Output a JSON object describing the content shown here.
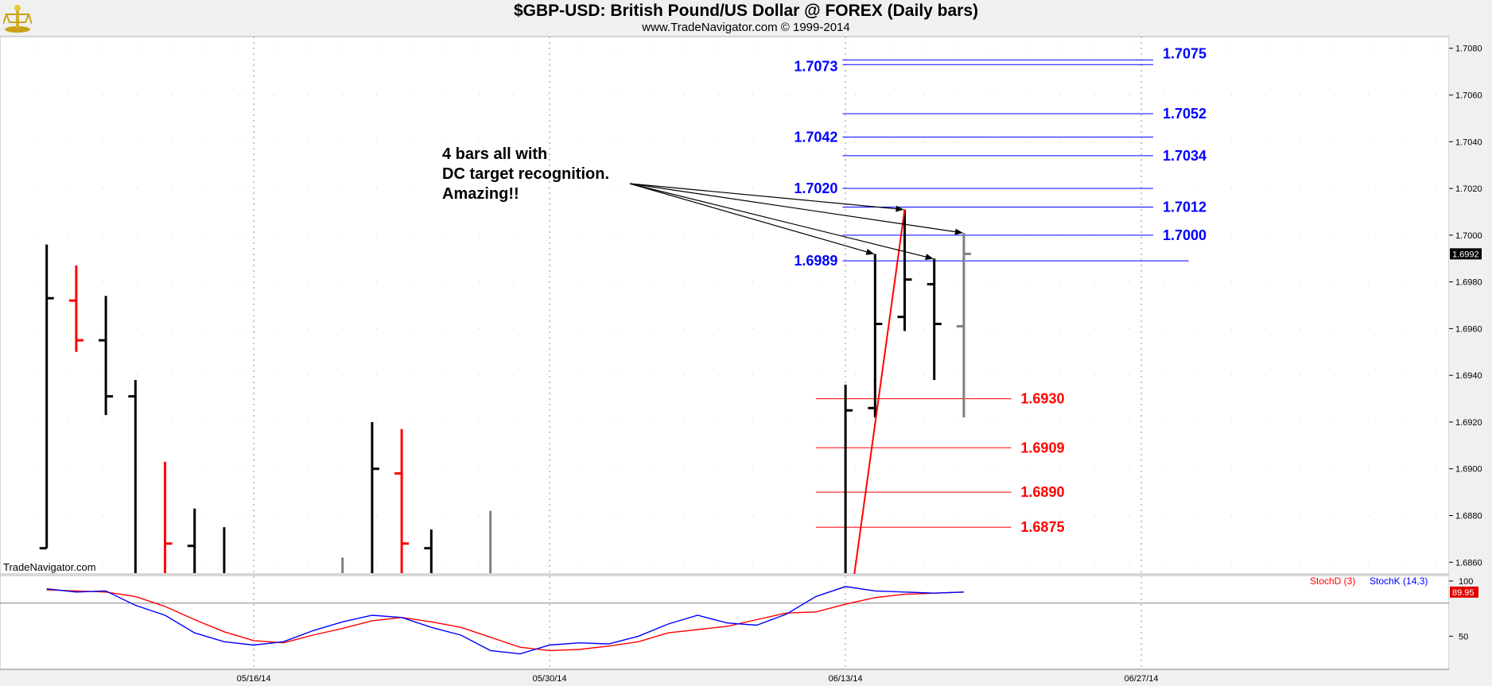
{
  "header": {
    "title": "$GBP-USD:  British Pound/US Dollar @ FOREX  (Daily bars)",
    "subtitle": "www.TradeNavigator.com © 1999-2014"
  },
  "watermark": "TradeNavigator.com",
  "chart_data": [
    {
      "type": "ohlc",
      "ylim": [
        1.6855,
        1.7085
      ],
      "y_ticks": [
        "1.7080",
        "1.7060",
        "1.7040",
        "1.7020",
        "1.7000",
        "1.6980",
        "1.6960",
        "1.6940",
        "1.6920",
        "1.6900",
        "1.6880",
        "1.6860"
      ],
      "x_ticks": [
        {
          "label": "05/16/14",
          "day": 8
        },
        {
          "label": "05/30/14",
          "day": 18
        },
        {
          "label": "06/13/14",
          "day": 28
        },
        {
          "label": "06/27/14",
          "day": 38
        }
      ],
      "last_price": {
        "label": "1.6992",
        "value": 1.6992
      },
      "bars": [
        {
          "day": 1,
          "open": 1.6866,
          "high": 1.6996,
          "low": 1.6866,
          "close": 1.6973,
          "color": "#000000"
        },
        {
          "day": 2,
          "open": 1.6972,
          "high": 1.6987,
          "low": 1.695,
          "close": 1.6955,
          "color": "#ff0000"
        },
        {
          "day": 3,
          "open": 1.6955,
          "high": 1.6974,
          "low": 1.6923,
          "close": 1.6931,
          "color": "#000000"
        },
        {
          "day": 4,
          "open": 1.6931,
          "high": 1.6938,
          "low": 1.6855,
          "close": 1.6855,
          "color": "#000000"
        },
        {
          "day": 5,
          "open": 1.6855,
          "high": 1.6903,
          "low": 1.6855,
          "close": 1.6868,
          "color": "#ff0000"
        },
        {
          "day": 6,
          "open": 1.6867,
          "high": 1.6883,
          "low": 1.6855,
          "close": 1.6855,
          "color": "#000000"
        },
        {
          "day": 7,
          "open": 1.6855,
          "high": 1.6875,
          "low": 1.6855,
          "close": 1.6855,
          "color": "#000000"
        },
        {
          "day": 11,
          "open": 1.6855,
          "high": 1.6862,
          "low": 1.6855,
          "close": 1.6855,
          "color": "#808080"
        },
        {
          "day": 12,
          "open": 1.6855,
          "high": 1.692,
          "low": 1.6855,
          "close": 1.69,
          "color": "#000000"
        },
        {
          "day": 13,
          "open": 1.6898,
          "high": 1.6917,
          "low": 1.6855,
          "close": 1.6868,
          "color": "#ff0000"
        },
        {
          "day": 14,
          "open": 1.6866,
          "high": 1.6874,
          "low": 1.6855,
          "close": 1.6855,
          "color": "#000000"
        },
        {
          "day": 16,
          "open": 1.6855,
          "high": 1.6882,
          "low": 1.6855,
          "close": 1.6855,
          "color": "#808080"
        },
        {
          "day": 28,
          "open": 1.6855,
          "high": 1.6936,
          "low": 1.6855,
          "close": 1.6925,
          "color": "#000000"
        },
        {
          "day": 29,
          "open": 1.6926,
          "high": 1.6992,
          "low": 1.6922,
          "close": 1.6962,
          "color": "#000000"
        },
        {
          "day": 30,
          "open": 1.6965,
          "high": 1.7011,
          "low": 1.6959,
          "close": 1.6981,
          "color": "#000000"
        },
        {
          "day": 31,
          "open": 1.6979,
          "high": 1.699,
          "low": 1.6938,
          "close": 1.6962,
          "color": "#000000"
        },
        {
          "day": 32,
          "open": 1.6961,
          "high": 1.7001,
          "low": 1.6922,
          "close": 1.6992,
          "color": "#808080"
        }
      ],
      "trend_line": {
        "from": {
          "day": 28.3,
          "value": 1.6855
        },
        "to": {
          "day": 30,
          "value": 1.7011
        },
        "color": "#ff0000"
      },
      "target_lines": [
        {
          "value": 1.7075,
          "label": "1.7075",
          "color": "#0000ff"
        },
        {
          "value": 1.7073,
          "label": "1.7073",
          "color": "#0000ff"
        },
        {
          "value": 1.7052,
          "label": "1.7052",
          "color": "#0000ff"
        },
        {
          "value": 1.7042,
          "label": "1.7042",
          "color": "#0000ff"
        },
        {
          "value": 1.7034,
          "label": "1.7034",
          "color": "#0000ff"
        },
        {
          "value": 1.702,
          "label": "1.7020",
          "color": "#0000ff"
        },
        {
          "value": 1.7012,
          "label": "1.7012",
          "color": "#0000ff"
        },
        {
          "value": 1.7,
          "label": "1.7000",
          "color": "#0000ff"
        },
        {
          "value": 1.6989,
          "label": "1.6989",
          "color": "#0000ff"
        },
        {
          "value": 1.693,
          "label": "1.6930",
          "color": "#ff0000"
        },
        {
          "value": 1.6909,
          "label": "1.6909",
          "color": "#ff0000"
        },
        {
          "value": 1.689,
          "label": "1.6890",
          "color": "#ff0000"
        },
        {
          "value": 1.6875,
          "label": "1.6875",
          "color": "#ff0000"
        }
      ],
      "annotation": {
        "lines": [
          "4 bars all with",
          "DC target recognition.",
          "Amazing!!"
        ],
        "arrow_targets": [
          {
            "day": 29,
            "value": 1.6992
          },
          {
            "day": 30,
            "value": 1.7011
          },
          {
            "day": 31,
            "value": 1.699
          },
          {
            "day": 32,
            "value": 1.7001
          }
        ]
      }
    },
    {
      "type": "line",
      "ylim": [
        20,
        105
      ],
      "y_ticks": [
        "100",
        "50"
      ],
      "legend": [
        {
          "label": "StochD (3)",
          "color": "#ff0000"
        },
        {
          "label": "StochK (14,3)",
          "color": "#0000ff"
        }
      ],
      "last_value": {
        "label": "89.95",
        "value": 89.95
      },
      "series": [
        {
          "name": "StochD (3)",
          "color": "#ff0000",
          "x": [
            1,
            2,
            3,
            4,
            5,
            6,
            7,
            8,
            9,
            10,
            11,
            12,
            13,
            14,
            15,
            16,
            17,
            18,
            19,
            20,
            21,
            22,
            23,
            24,
            25,
            26,
            27,
            28,
            29,
            30,
            31,
            32
          ],
          "values": [
            92,
            91,
            90,
            86,
            77,
            65,
            54,
            46,
            44,
            51,
            57,
            64,
            67,
            63,
            58,
            49,
            40,
            37,
            38,
            41,
            45,
            53,
            56,
            59,
            65,
            71,
            72,
            79,
            85,
            88,
            89,
            90
          ]
        },
        {
          "name": "StochK (14,3)",
          "color": "#0000ff",
          "x": [
            1,
            2,
            3,
            4,
            5,
            6,
            7,
            8,
            9,
            10,
            11,
            12,
            13,
            14,
            15,
            16,
            17,
            18,
            19,
            20,
            21,
            22,
            23,
            24,
            25,
            26,
            27,
            28,
            29,
            30,
            31,
            32
          ],
          "values": [
            93,
            90,
            91,
            78,
            69,
            53,
            45,
            42,
            45,
            55,
            63,
            69,
            67,
            58,
            51,
            37,
            34,
            42,
            44,
            43,
            50,
            61,
            69,
            62,
            60,
            70,
            86,
            95,
            91,
            90,
            89,
            90
          ]
        }
      ]
    }
  ]
}
